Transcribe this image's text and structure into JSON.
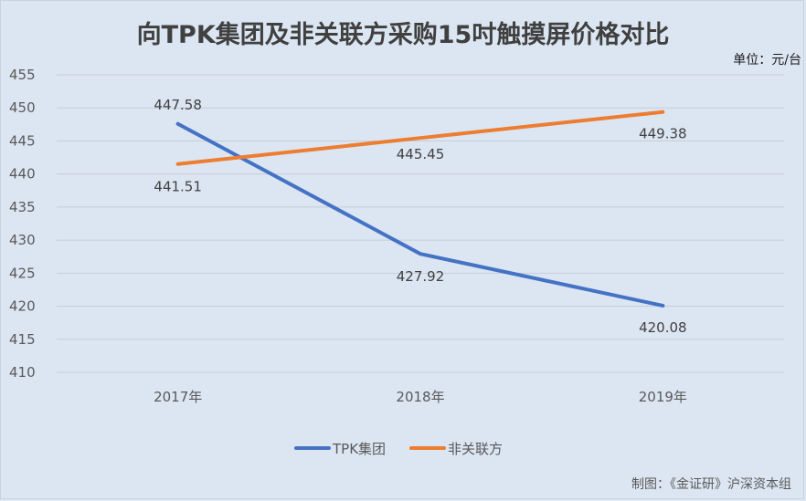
{
  "chart_data": {
    "type": "line",
    "title": "向TPK集团及非关联方采购15吋触摸屏价格对比",
    "unit_note": "单位：元/台",
    "credit": "制图：《金证研》沪深资本组",
    "categories": [
      "2017年",
      "2018年",
      "2019年"
    ],
    "yticks": [
      455,
      450,
      445,
      440,
      435,
      430,
      425,
      420,
      415,
      410
    ],
    "ylim": [
      410,
      455
    ],
    "grid": true,
    "legend_position": "bottom",
    "series": [
      {
        "name": "TPK集团",
        "color": "#4472c4",
        "values": [
          447.58,
          427.92,
          420.08
        ],
        "labels": [
          "447.58",
          "427.92",
          "420.08"
        ]
      },
      {
        "name": "非关联方",
        "color": "#ed7d31",
        "values": [
          441.51,
          445.45,
          449.38
        ],
        "labels": [
          "441.51",
          "445.45",
          "449.38"
        ]
      }
    ]
  }
}
